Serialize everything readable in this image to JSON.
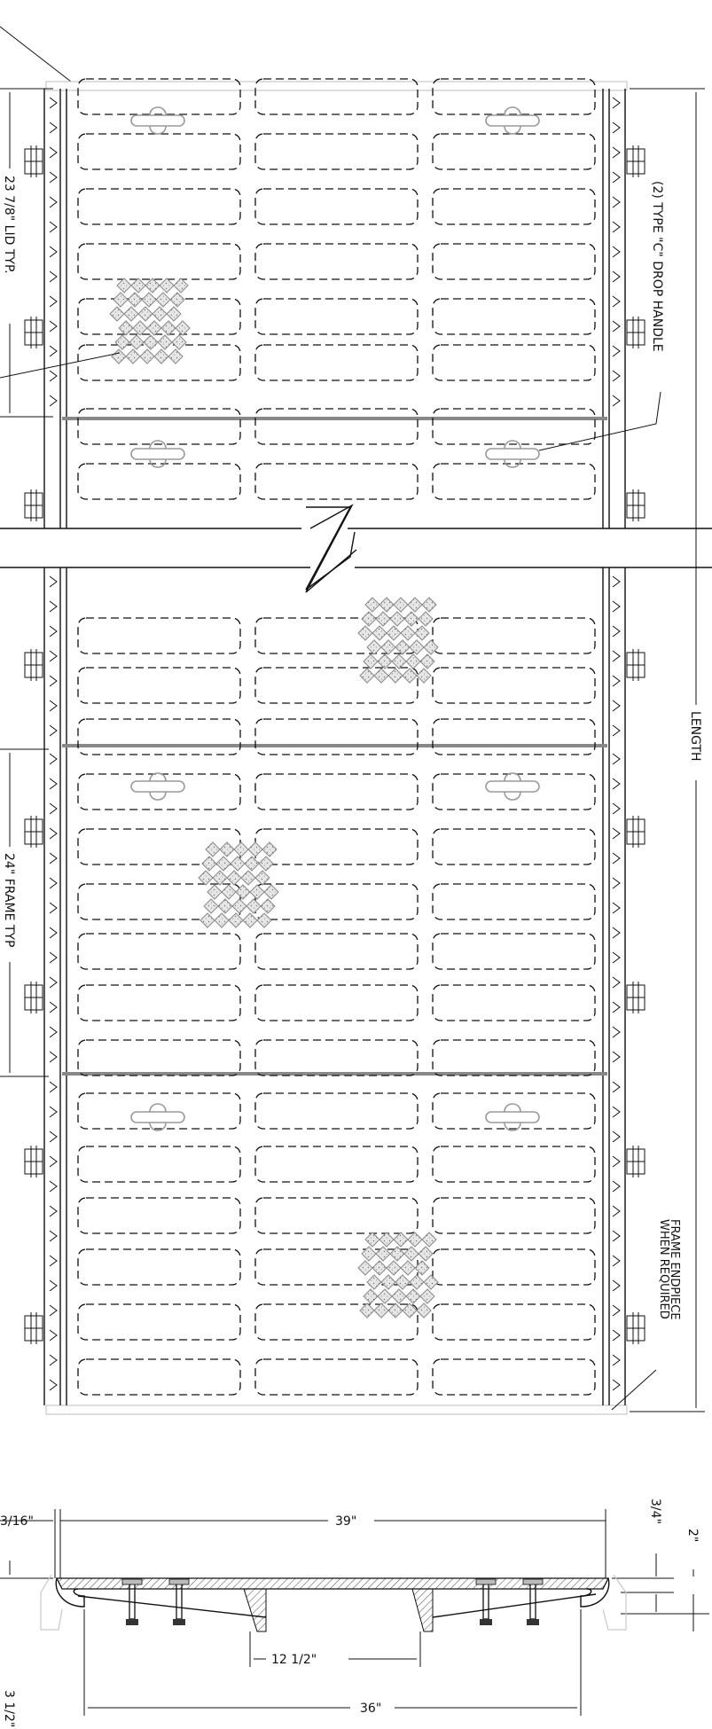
{
  "labels": {
    "drop_handle": "(2) TYPE \"C\" DROP HANDLE",
    "length": "LENGTH",
    "lid": "23 7/8\" LID TYP.",
    "frame": "24\" FRAME TYP",
    "endpiece_line1": "FRAME ENDPIECE",
    "endpiece_line2": "WHEN REQUIRED",
    "dim_3_16": "3/16\"",
    "dim_39": "39\"",
    "dim_3_4": "3/4\"",
    "dim_2": "2\"",
    "dim_12_half": "12 1/2\"",
    "dim_36": "36\"",
    "dim_3_half": "3 1/2\""
  }
}
